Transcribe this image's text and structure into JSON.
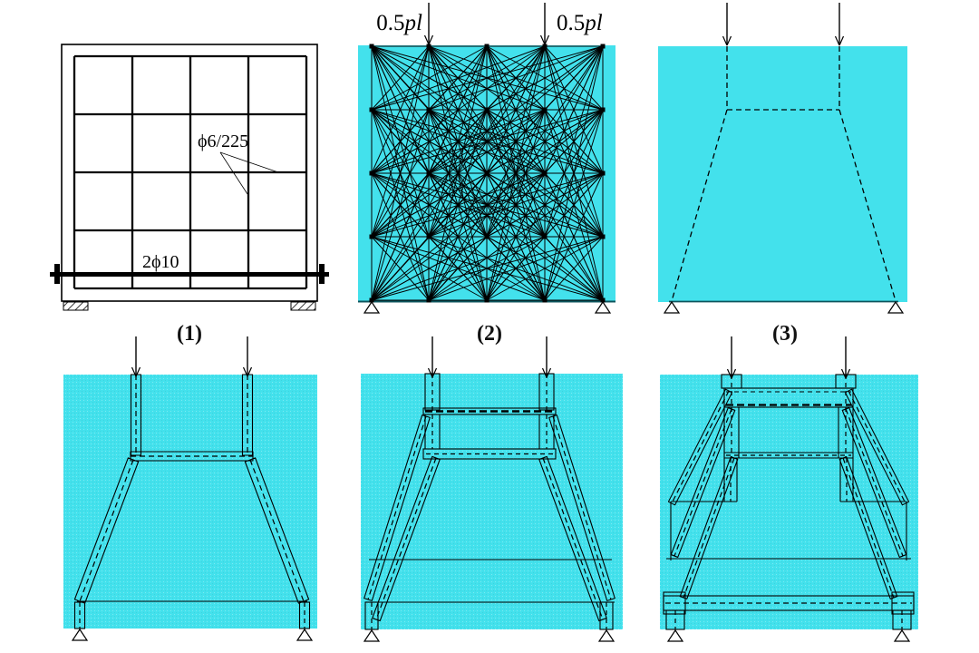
{
  "colors": {
    "panel_fill": "#43E1EC",
    "line": "#000000",
    "edge_dark": "#0C545C"
  },
  "panel1": {
    "caption": "(1)",
    "mesh_label": "ϕ6/225",
    "tie_label": "2ϕ10"
  },
  "panel2": {
    "caption": "(2)",
    "load_left": {
      "coef": "0.5",
      "sym": "pl"
    },
    "load_right": {
      "coef": "0.5",
      "sym": "pl"
    }
  },
  "panel3": {
    "caption": "(3)"
  }
}
